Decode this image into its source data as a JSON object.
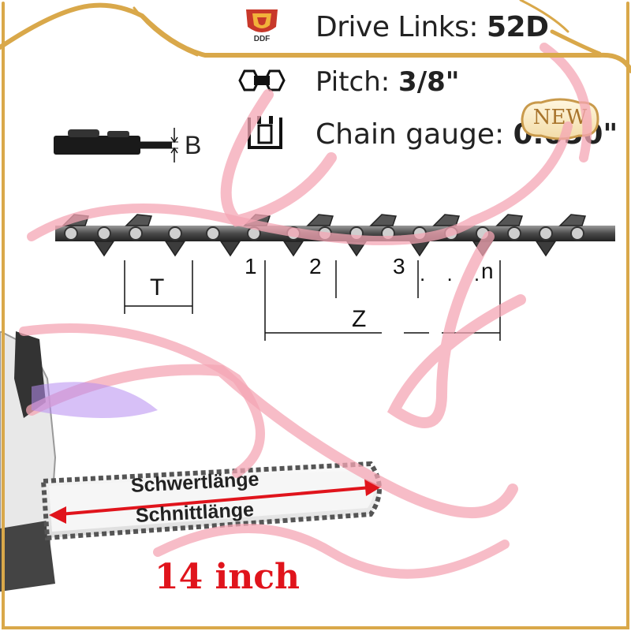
{
  "logo": {
    "text": "DDF"
  },
  "specs": {
    "drive_label": "Drive Links:",
    "drive_value": "52D",
    "pitch_label": "Pitch:",
    "pitch_value": "3/8\"",
    "gauge_label": "Chain gauge:",
    "gauge_value": "0.050\""
  },
  "badge": {
    "text": "NEW"
  },
  "diagram": {
    "gauge_symbol": "B",
    "pitch_symbol": "T",
    "count_symbol": "Z",
    "link_numbers": [
      "1",
      "2",
      "3"
    ],
    "ellipsis": ". . .",
    "last_symbol": "n"
  },
  "bar": {
    "label_top": "Schwertlänge",
    "label_bottom": "Schnittlänge"
  },
  "size": {
    "text": "14 inch"
  },
  "colors": {
    "frame_gold": "#d9a84a",
    "ribbon_pink": "#f4a6b4",
    "arrow_red": "#e0141c",
    "size_red": "#e0141c"
  }
}
